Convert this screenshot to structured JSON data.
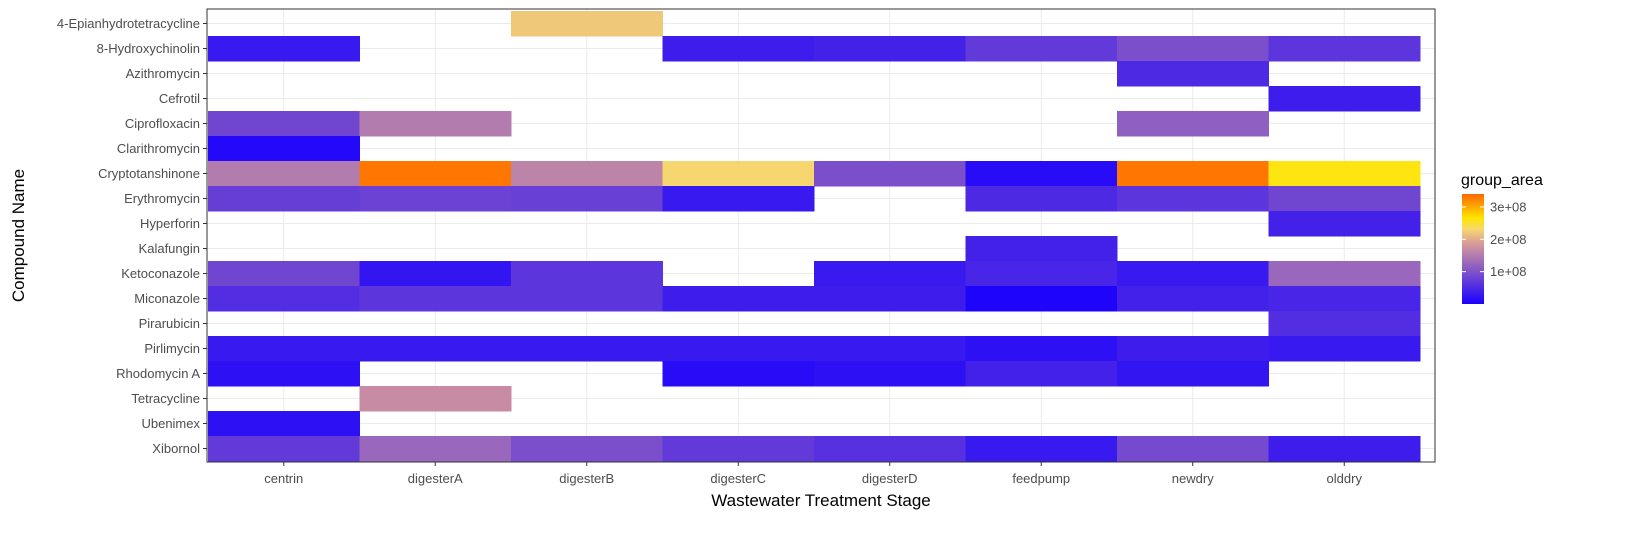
{
  "chart_data": {
    "type": "heatmap",
    "title": "",
    "xlabel": "Wastewater Treatment Stage",
    "ylabel": "Compound Name",
    "x_categories": [
      "centrin",
      "digesterA",
      "digesterB",
      "digesterC",
      "digesterD",
      "feedpump",
      "newdry",
      "olddry"
    ],
    "y_categories": [
      "4-Epianhydrotetracycline",
      "8-Hydroxychinolin",
      "Azithromycin",
      "Cefrotil",
      "Ciprofloxacin",
      "Clarithromycin",
      "Cryptotanshinone",
      "Erythromycin",
      "Hyperforin",
      "Kalafungin",
      "Ketoconazole",
      "Miconazole",
      "Pirarubicin",
      "Pirlimycin",
      "Rhodomycin A",
      "Tetracycline",
      "Ubenimex",
      "Xibornol"
    ],
    "values": [
      [
        null,
        null,
        220000000,
        null,
        null,
        null,
        null,
        null
      ],
      [
        30000000,
        null,
        null,
        35000000,
        40000000,
        70000000,
        95000000,
        65000000
      ],
      [
        null,
        null,
        null,
        null,
        null,
        null,
        50000000,
        null
      ],
      [
        null,
        null,
        null,
        null,
        null,
        null,
        null,
        35000000
      ],
      [
        85000000,
        150000000,
        null,
        null,
        null,
        null,
        115000000,
        null
      ],
      [
        10000000,
        null,
        null,
        null,
        null,
        null,
        null,
        null
      ],
      [
        150000000,
        330000000,
        160000000,
        230000000,
        95000000,
        15000000,
        330000000,
        260000000
      ],
      [
        75000000,
        80000000,
        78000000,
        30000000,
        null,
        50000000,
        65000000,
        85000000
      ],
      [
        null,
        null,
        null,
        null,
        null,
        null,
        null,
        40000000
      ],
      [
        null,
        null,
        null,
        null,
        null,
        40000000,
        null,
        null
      ],
      [
        85000000,
        25000000,
        65000000,
        null,
        30000000,
        45000000,
        30000000,
        125000000
      ],
      [
        55000000,
        65000000,
        65000000,
        35000000,
        35000000,
        5000000,
        40000000,
        45000000
      ],
      [
        null,
        null,
        null,
        null,
        null,
        null,
        null,
        55000000
      ],
      [
        30000000,
        30000000,
        30000000,
        30000000,
        30000000,
        20000000,
        35000000,
        30000000
      ],
      [
        20000000,
        null,
        null,
        15000000,
        20000000,
        40000000,
        25000000,
        null
      ],
      [
        null,
        170000000,
        null,
        null,
        null,
        null,
        null,
        null
      ],
      [
        20000000,
        null,
        null,
        null,
        null,
        null,
        null,
        null
      ],
      [
        70000000,
        125000000,
        95000000,
        70000000,
        60000000,
        30000000,
        90000000,
        35000000
      ]
    ],
    "legend": {
      "title": "group_area",
      "ticks": [
        100000000,
        200000000,
        300000000
      ],
      "tick_labels": [
        "1e+08",
        "2e+08",
        "3e+08"
      ],
      "range": [
        0,
        340000000
      ],
      "placement": "right"
    },
    "color_scale": {
      "low": "#1a00ff",
      "mid": "#f7d86e",
      "high": "#ffe600",
      "top": "#ff6600"
    },
    "grid": true
  }
}
